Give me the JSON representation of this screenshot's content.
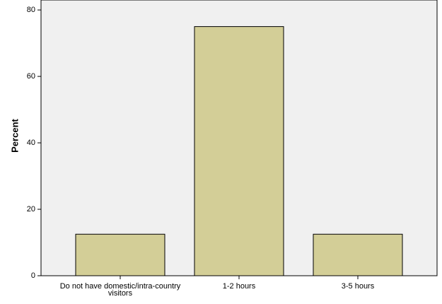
{
  "chart_data": {
    "type": "bar",
    "y_label": "Percent",
    "categories": [
      "Do not have domestic/intra-country visitors",
      "1-2 hours",
      "3-5 hours"
    ],
    "values": [
      12.5,
      75,
      12.5
    ],
    "color": "#d3ce97",
    "ylim": [
      0,
      83
    ],
    "yticks": [
      0,
      20,
      40,
      60,
      80
    ],
    "grid": false
  }
}
